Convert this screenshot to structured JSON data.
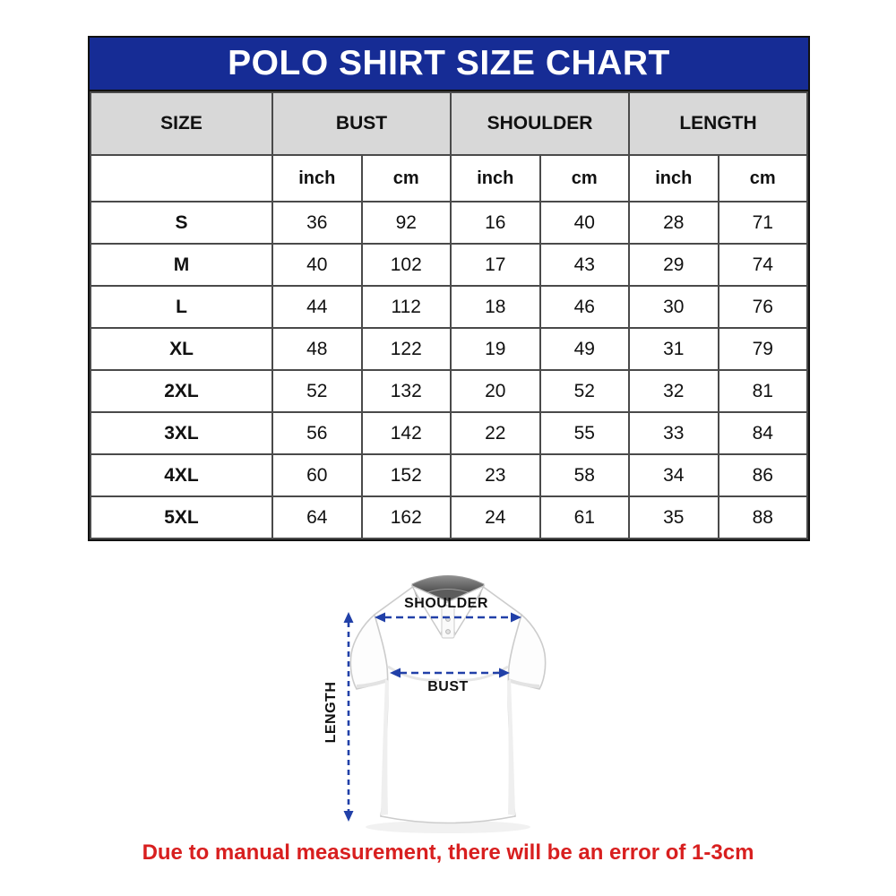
{
  "title": "POLO SHIRT SIZE CHART",
  "table": {
    "columns": [
      "SIZE",
      "BUST",
      "SHOULDER",
      "LENGTH"
    ],
    "unit_row": [
      "",
      "inch",
      "cm",
      "inch",
      "cm",
      "inch",
      "cm"
    ],
    "rows": [
      {
        "size": "S",
        "values": [
          "36",
          "92",
          "16",
          "40",
          "28",
          "71"
        ]
      },
      {
        "size": "M",
        "values": [
          "40",
          "102",
          "17",
          "43",
          "29",
          "74"
        ]
      },
      {
        "size": "L",
        "values": [
          "44",
          "112",
          "18",
          "46",
          "30",
          "76"
        ]
      },
      {
        "size": "XL",
        "values": [
          "48",
          "122",
          "19",
          "49",
          "31",
          "79"
        ]
      },
      {
        "size": "2XL",
        "values": [
          "52",
          "132",
          "20",
          "52",
          "32",
          "81"
        ]
      },
      {
        "size": "3XL",
        "values": [
          "56",
          "142",
          "22",
          "55",
          "33",
          "84"
        ]
      },
      {
        "size": "4XL",
        "values": [
          "60",
          "152",
          "23",
          "58",
          "34",
          "86"
        ]
      },
      {
        "size": "5XL",
        "values": [
          "64",
          "162",
          "24",
          "61",
          "35",
          "88"
        ]
      }
    ]
  },
  "diagram": {
    "shoulder_label": "SHOULDER",
    "bust_label": "BUST",
    "length_label": "LENGTH"
  },
  "footnote": "Due to manual measurement, there will be an error of 1-3cm",
  "colors": {
    "header_blue": "#162c95",
    "header_gray": "#d8d8d8",
    "arrow_blue": "#2140a8",
    "note_red": "#d81f1f",
    "border_dark": "#111111",
    "grid_gray": "#4a4a4a"
  },
  "chart_data": {
    "type": "table",
    "title": "POLO SHIRT SIZE CHART",
    "columns": [
      "SIZE",
      "BUST inch",
      "BUST cm",
      "SHOULDER inch",
      "SHOULDER cm",
      "LENGTH inch",
      "LENGTH cm"
    ],
    "rows": [
      [
        "S",
        36,
        92,
        16,
        40,
        28,
        71
      ],
      [
        "M",
        40,
        102,
        17,
        43,
        29,
        74
      ],
      [
        "L",
        44,
        112,
        18,
        46,
        30,
        76
      ],
      [
        "XL",
        48,
        122,
        19,
        49,
        31,
        79
      ],
      [
        "2XL",
        52,
        132,
        20,
        52,
        32,
        81
      ],
      [
        "3XL",
        56,
        142,
        22,
        55,
        33,
        84
      ],
      [
        "4XL",
        60,
        152,
        23,
        58,
        34,
        86
      ],
      [
        "5XL",
        64,
        162,
        24,
        61,
        35,
        88
      ]
    ]
  }
}
